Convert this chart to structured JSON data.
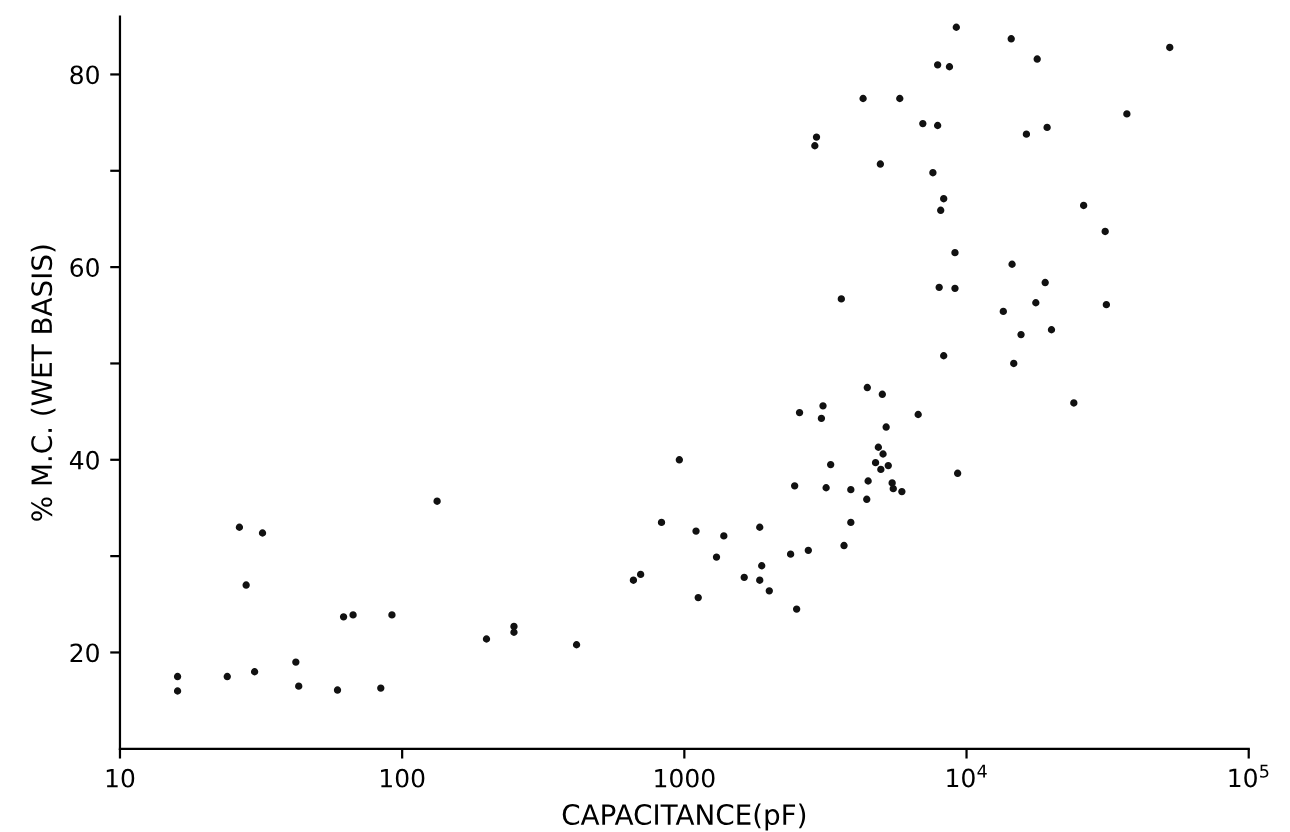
{
  "chart_data": {
    "type": "scatter",
    "xlabel": "CAPACITANCE(pF)",
    "ylabel": "% M.C. (WET BASIS)",
    "log": "x",
    "marker": "circle",
    "grid": false,
    "xlim": [
      10,
      100000
    ],
    "xticks": [
      10,
      100,
      1000,
      {
        "value": 10000,
        "label": "10$^{4}$"
      },
      {
        "value": 100000,
        "label": "10$^{5}$"
      }
    ],
    "ylim": [
      10,
      86
    ],
    "yticks": [
      {
        "value": 20,
        "label": "20"
      },
      {
        "value": 30,
        "label": null
      },
      {
        "value": 40,
        "label": "40"
      },
      {
        "value": 50,
        "label": null
      },
      {
        "value": 60,
        "label": "60"
      },
      {
        "value": 70,
        "label": null
      },
      {
        "value": 80,
        "label": "80"
      }
    ],
    "series": [
      {
        "color": "#111111",
        "x": [
          16,
          16,
          24,
          26.5,
          28,
          30,
          32,
          42,
          43,
          59,
          62,
          67,
          84,
          92,
          133,
          199,
          249,
          249,
          415,
          660,
          700,
          960,
          830,
          1100,
          1380,
          1300,
          1850,
          1880,
          1630,
          1850,
          2000,
          1120,
          2500,
          2380,
          2750,
          3680,
          3890,
          2460,
          3180,
          3890,
          4430,
          4480,
          3300,
          4760,
          4970,
          5280,
          4870,
          5060,
          5450,
          5500,
          5900,
          9300,
          2560,
          3100,
          3060,
          4450,
          5030,
          5190,
          6740,
          24000,
          14700,
          9200,
          14400,
          17800,
          52500,
          7900,
          8700,
          4300,
          5800,
          7000,
          7900,
          16300,
          19300,
          37000,
          2940,
          2900,
          4950,
          7600,
          8300,
          8100,
          26000,
          31000,
          9100,
          14500,
          19000,
          8000,
          9100,
          3600,
          17600,
          13500,
          31300,
          15600,
          20000,
          8300
        ],
        "values": [
          17.5,
          16,
          17.5,
          33,
          27,
          18,
          32.4,
          19,
          16.5,
          16.1,
          23.7,
          23.9,
          16.3,
          23.9,
          35.7,
          21.4,
          22.1,
          22.7,
          20.8,
          27.5,
          28.1,
          40,
          33.5,
          32.6,
          32.1,
          29.9,
          33,
          29,
          27.8,
          27.5,
          26.4,
          25.7,
          24.5,
          30.2,
          30.6,
          31.1,
          33.5,
          37.3,
          37.1,
          36.9,
          35.9,
          37.8,
          39.5,
          39.7,
          39,
          39.4,
          41.3,
          40.6,
          37.6,
          37,
          36.7,
          38.6,
          44.9,
          45.6,
          44.3,
          47.5,
          46.8,
          43.4,
          44.7,
          45.9,
          50,
          84.9,
          83.7,
          81.6,
          82.8,
          81,
          80.8,
          77.5,
          77.5,
          74.9,
          74.7,
          73.8,
          74.5,
          75.9,
          73.5,
          72.6,
          70.7,
          69.8,
          67.1,
          65.9,
          66.4,
          63.7,
          61.5,
          60.3,
          58.4,
          57.9,
          57.8,
          56.7,
          56.3,
          55.4,
          56.1,
          53,
          53.5,
          50.8
        ]
      }
    ]
  }
}
